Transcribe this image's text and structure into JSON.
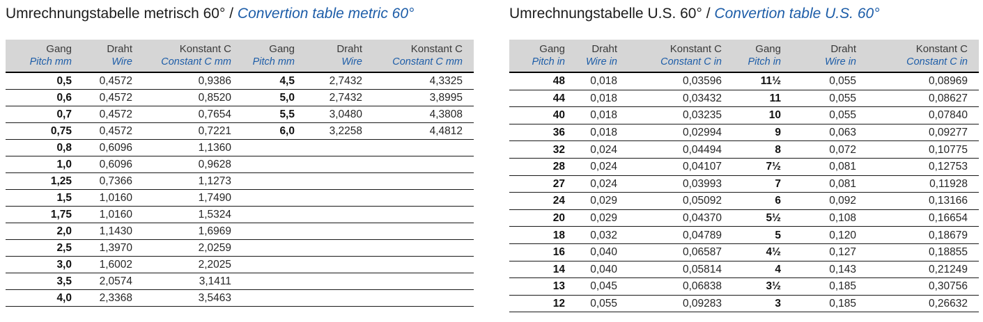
{
  "colors": {
    "accent_blue": "#1d5da8",
    "header_bg": "#d6d6d6",
    "title_ink": "#1c1c1c"
  },
  "tables": [
    {
      "id": "metric",
      "title_de": "Umrechnungstabelle metrisch 60°",
      "title_sep": " / ",
      "title_en": "Convertion table metric 60°",
      "columns": [
        {
          "de": "Gang",
          "en": "Pitch mm"
        },
        {
          "de": "Draht",
          "en": "Wire"
        },
        {
          "de": "Konstant C",
          "en": "Constant C mm"
        },
        {
          "de": "Gang",
          "en": "Pitch mm"
        },
        {
          "de": "Draht",
          "en": "Wire"
        },
        {
          "de": "Konstant C",
          "en": "Constant C mm"
        }
      ],
      "rows": [
        [
          "0,5",
          "0,4572",
          "0,9386",
          "4,5",
          "2,7432",
          "4,3325"
        ],
        [
          "0,6",
          "0,4572",
          "0,8520",
          "5,0",
          "2,7432",
          "3,8995"
        ],
        [
          "0,7",
          "0,4572",
          "0,7654",
          "5,5",
          "3,0480",
          "4,3808"
        ],
        [
          "0,75",
          "0,4572",
          "0,7221",
          "6,0",
          "3,2258",
          "4,4812"
        ],
        [
          "0,8",
          "0,6096",
          "1,1360",
          "",
          "",
          ""
        ],
        [
          "1,0",
          "0,6096",
          "0,9628",
          "",
          "",
          ""
        ],
        [
          "1,25",
          "0,7366",
          "1,1273",
          "",
          "",
          ""
        ],
        [
          "1,5",
          "1,0160",
          "1,7490",
          "",
          "",
          ""
        ],
        [
          "1,75",
          "1,0160",
          "1,5324",
          "",
          "",
          ""
        ],
        [
          "2,0",
          "1,1430",
          "1,6969",
          "",
          "",
          ""
        ],
        [
          "2,5",
          "1,3970",
          "2,0259",
          "",
          "",
          ""
        ],
        [
          "3,0",
          "1,6002",
          "2,2025",
          "",
          "",
          ""
        ],
        [
          "3,5",
          "2,0574",
          "3,1411",
          "",
          "",
          ""
        ],
        [
          "4,0",
          "2,3368",
          "3,5463",
          "",
          "",
          ""
        ]
      ]
    },
    {
      "id": "us",
      "title_de": "Umrechnungstabelle U.S. 60°",
      "title_sep": " / ",
      "title_en": "Convertion table U.S. 60°",
      "columns": [
        {
          "de": "Gang",
          "en": "Pitch in"
        },
        {
          "de": "Draht",
          "en": "Wire in"
        },
        {
          "de": "Konstant C",
          "en": "Constant C in"
        },
        {
          "de": "Gang",
          "en": "Pitch in"
        },
        {
          "de": "Draht",
          "en": "Wire in"
        },
        {
          "de": "Konstant C",
          "en": "Constant C in"
        }
      ],
      "rows": [
        [
          "48",
          "0,018",
          "0,03596",
          "11½",
          "0,055",
          "0,08969"
        ],
        [
          "44",
          "0,018",
          "0,03432",
          "11",
          "0,055",
          "0,08627"
        ],
        [
          "40",
          "0,018",
          "0,03235",
          "10",
          "0,055",
          "0,07840"
        ],
        [
          "36",
          "0,018",
          "0,02994",
          "9",
          "0,063",
          "0,09277"
        ],
        [
          "32",
          "0,024",
          "0,04494",
          "8",
          "0,072",
          "0,10775"
        ],
        [
          "28",
          "0,024",
          "0,04107",
          "7½",
          "0,081",
          "0,12753"
        ],
        [
          "27",
          "0,024",
          "0,03993",
          "7",
          "0,081",
          "0,11928"
        ],
        [
          "24",
          "0,029",
          "0,05092",
          "6",
          "0,092",
          "0,13166"
        ],
        [
          "20",
          "0,029",
          "0,04370",
          "5½",
          "0,108",
          "0,16654"
        ],
        [
          "18",
          "0,032",
          "0,04789",
          "5",
          "0,120",
          "0,18679"
        ],
        [
          "16",
          "0,040",
          "0,06587",
          "4½",
          "0,127",
          "0,18855"
        ],
        [
          "14",
          "0,040",
          "0,05814",
          "4",
          "0,143",
          "0,21249"
        ],
        [
          "13",
          "0,045",
          "0,06838",
          "3½",
          "0,185",
          "0,30756"
        ],
        [
          "12",
          "0,055",
          "0,09283",
          "3",
          "0,185",
          "0,26632"
        ]
      ]
    }
  ]
}
